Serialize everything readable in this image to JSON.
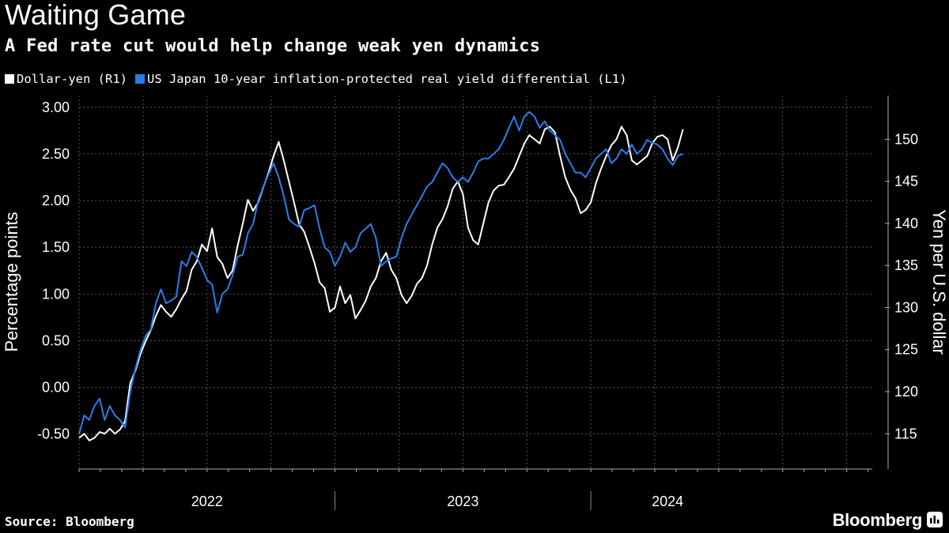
{
  "header": {
    "title": "Waiting Game",
    "subtitle": "A Fed rate cut would help change weak yen dynamics"
  },
  "footer": {
    "source": "Source: Bloomberg",
    "brand": "Bloomberg"
  },
  "colors": {
    "background": "#000000",
    "dollar_yen": "#ffffff",
    "yield_diff": "#2b7de9",
    "grid": "#555555"
  },
  "chart_data": {
    "type": "line",
    "legend": [
      {
        "name": "Dollar-yen (R1)",
        "color": "#ffffff"
      },
      {
        "name": "US Japan 10-year inflation-protected real yield differential (L1)",
        "color": "#2b7de9"
      }
    ],
    "ylabel_left": "Percentage points",
    "ylabel_right": "Yen per U.S. dollar",
    "ylim_left": [
      -0.875,
      3.125
    ],
    "ylim_right": [
      110.8,
      155.2
    ],
    "yticks_left": [
      "-0.50",
      "0.00",
      "0.50",
      "1.00",
      "1.50",
      "2.00",
      "2.50",
      "3.00"
    ],
    "yticks_right": [
      "115",
      "120",
      "125",
      "130",
      "135",
      "140",
      "145",
      "150"
    ],
    "xlim": [
      2021.0,
      2024.1
    ],
    "year_labels": [
      {
        "label": "2022",
        "x": 2021.5
      },
      {
        "label": "2023",
        "x": 2022.5
      },
      {
        "label": "2024",
        "x": 2023.3
      }
    ],
    "year_boundaries": [
      2022.0,
      2023.0
    ],
    "grid": true,
    "series": [
      {
        "name": "Dollar-yen",
        "axis": "right",
        "x": [
          2021.0,
          2021.02,
          2021.04,
          2021.06,
          2021.08,
          2021.1,
          2021.12,
          2021.14,
          2021.16,
          2021.18,
          2021.2,
          2021.22,
          2021.24,
          2021.26,
          2021.28,
          2021.3,
          2021.32,
          2021.34,
          2021.36,
          2021.38,
          2021.4,
          2021.42,
          2021.44,
          2021.46,
          2021.48,
          2021.5,
          2021.52,
          2021.54,
          2021.56,
          2021.58,
          2021.6,
          2021.62,
          2021.64,
          2021.66,
          2021.68,
          2021.7,
          2021.72,
          2021.74,
          2021.76,
          2021.78,
          2021.8,
          2021.82,
          2021.84,
          2021.86,
          2021.88,
          2021.9,
          2021.92,
          2021.94,
          2021.96,
          2021.98,
          2022.0,
          2022.02,
          2022.04,
          2022.06,
          2022.08,
          2022.1,
          2022.12,
          2022.14,
          2022.16,
          2022.18,
          2022.2,
          2022.22,
          2022.24,
          2022.26,
          2022.28,
          2022.3,
          2022.32,
          2022.34,
          2022.36,
          2022.38,
          2022.4,
          2022.42,
          2022.44,
          2022.46,
          2022.48,
          2022.5,
          2022.52,
          2022.54,
          2022.56,
          2022.58,
          2022.6,
          2022.62,
          2022.64,
          2022.66,
          2022.68,
          2022.7,
          2022.72,
          2022.74,
          2022.76,
          2022.78,
          2022.8,
          2022.82,
          2022.84,
          2022.86,
          2022.88,
          2022.9,
          2022.92,
          2022.94,
          2022.96,
          2022.98,
          2023.0,
          2023.02,
          2023.04,
          2023.06,
          2023.08,
          2023.1,
          2023.12,
          2023.14,
          2023.16,
          2023.18,
          2023.2,
          2023.22,
          2023.24,
          2023.26,
          2023.28,
          2023.3,
          2023.32,
          2023.34,
          2023.36
        ],
        "values": [
          114.5,
          115.0,
          114.2,
          114.5,
          115.2,
          115.0,
          115.6,
          115.0,
          115.5,
          116.5,
          121.0,
          122.5,
          124.5,
          126.0,
          127.3,
          129.0,
          130.3,
          129.5,
          128.9,
          129.8,
          131.0,
          132.0,
          134.5,
          135.5,
          137.5,
          136.7,
          139.4,
          136.0,
          135.2,
          133.5,
          134.4,
          137.4,
          140.0,
          142.8,
          141.5,
          142.5,
          144.3,
          146.0,
          148.0,
          149.7,
          147.5,
          145.0,
          142.5,
          139.9,
          139.0,
          137.2,
          135.3,
          133.0,
          132.3,
          129.5,
          130.0,
          132.5,
          130.5,
          131.5,
          128.7,
          129.7,
          130.8,
          132.5,
          133.5,
          135.5,
          136.5,
          134.5,
          133.5,
          131.5,
          130.5,
          131.4,
          132.8,
          133.5,
          135.0,
          137.5,
          139.5,
          140.5,
          142.0,
          144.1,
          145.0,
          143.5,
          139.5,
          138.0,
          137.5,
          140.0,
          142.5,
          143.9,
          144.5,
          144.6,
          145.5,
          146.5,
          148.0,
          149.5,
          150.5,
          150.0,
          149.5,
          151.2,
          151.5,
          150.8,
          148.0,
          145.5,
          144.0,
          143.0,
          141.2,
          141.6,
          142.5,
          144.8,
          146.5,
          148.0,
          149.3,
          150.0,
          151.5,
          150.5,
          147.5,
          147.0,
          147.5,
          148.0,
          149.5,
          150.3,
          150.5,
          150.0,
          147.5,
          149.0,
          151.2
        ]
      },
      {
        "name": "US Japan 10-year inflation-protected real yield differential",
        "axis": "left",
        "x": [
          2021.0,
          2021.02,
          2021.04,
          2021.06,
          2021.08,
          2021.1,
          2021.12,
          2021.14,
          2021.16,
          2021.18,
          2021.2,
          2021.22,
          2021.24,
          2021.26,
          2021.28,
          2021.3,
          2021.32,
          2021.34,
          2021.36,
          2021.38,
          2021.4,
          2021.42,
          2021.44,
          2021.46,
          2021.48,
          2021.5,
          2021.52,
          2021.54,
          2021.56,
          2021.58,
          2021.6,
          2021.62,
          2021.64,
          2021.66,
          2021.68,
          2021.7,
          2021.72,
          2021.74,
          2021.76,
          2021.78,
          2021.8,
          2021.82,
          2021.84,
          2021.86,
          2021.88,
          2021.9,
          2021.92,
          2021.94,
          2021.96,
          2021.98,
          2022.0,
          2022.02,
          2022.04,
          2022.06,
          2022.08,
          2022.1,
          2022.12,
          2022.14,
          2022.16,
          2022.18,
          2022.2,
          2022.22,
          2022.24,
          2022.26,
          2022.28,
          2022.3,
          2022.32,
          2022.34,
          2022.36,
          2022.38,
          2022.4,
          2022.42,
          2022.44,
          2022.46,
          2022.48,
          2022.5,
          2022.52,
          2022.54,
          2022.56,
          2022.58,
          2022.6,
          2022.62,
          2022.64,
          2022.66,
          2022.68,
          2022.7,
          2022.72,
          2022.74,
          2022.76,
          2022.78,
          2022.8,
          2022.82,
          2022.84,
          2022.86,
          2022.88,
          2022.9,
          2022.92,
          2022.94,
          2022.96,
          2022.98,
          2023.0,
          2023.02,
          2023.04,
          2023.06,
          2023.08,
          2023.1,
          2023.12,
          2023.14,
          2023.16,
          2023.18,
          2023.2,
          2023.22,
          2023.24,
          2023.26,
          2023.28,
          2023.3,
          2023.32,
          2023.34,
          2023.36
        ],
        "values": [
          -0.5,
          -0.3,
          -0.35,
          -0.2,
          -0.12,
          -0.35,
          -0.2,
          -0.3,
          -0.35,
          -0.43,
          -0.05,
          0.2,
          0.4,
          0.55,
          0.62,
          0.9,
          1.05,
          0.9,
          0.93,
          0.97,
          1.35,
          1.3,
          1.45,
          1.4,
          1.28,
          1.15,
          1.1,
          0.8,
          1.0,
          1.05,
          1.2,
          1.4,
          1.42,
          1.65,
          1.75,
          2.0,
          2.15,
          2.28,
          2.4,
          2.25,
          2.05,
          1.8,
          1.75,
          1.72,
          1.9,
          1.92,
          1.95,
          1.7,
          1.5,
          1.45,
          1.3,
          1.4,
          1.55,
          1.45,
          1.5,
          1.65,
          1.7,
          1.75,
          1.6,
          1.3,
          1.35,
          1.38,
          1.4,
          1.6,
          1.75,
          1.85,
          1.95,
          2.05,
          2.15,
          2.2,
          2.3,
          2.4,
          2.35,
          2.25,
          2.2,
          2.25,
          2.2,
          2.3,
          2.42,
          2.45,
          2.45,
          2.5,
          2.55,
          2.65,
          2.78,
          2.9,
          2.75,
          2.9,
          2.95,
          2.9,
          2.78,
          2.85,
          2.75,
          2.7,
          2.65,
          2.5,
          2.4,
          2.3,
          2.3,
          2.25,
          2.35,
          2.45,
          2.5,
          2.55,
          2.4,
          2.45,
          2.55,
          2.5,
          2.6,
          2.5,
          2.55,
          2.65,
          2.62,
          2.6,
          2.55,
          2.45,
          2.38,
          2.48,
          2.5
        ]
      }
    ]
  }
}
